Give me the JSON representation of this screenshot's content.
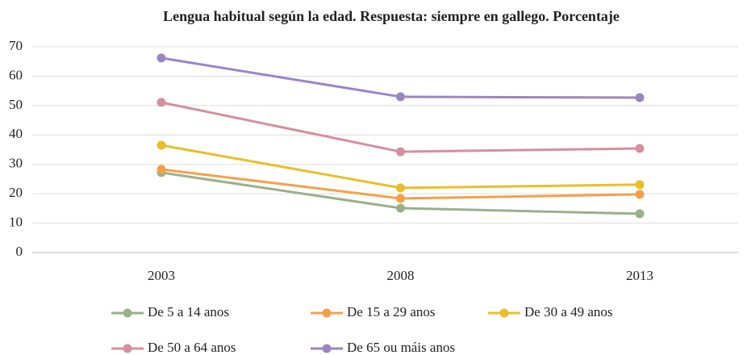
{
  "chart_data": {
    "type": "line",
    "title": "Lengua habitual según la edad. Respuesta: siempre en gallego. Porcentaje",
    "categories": [
      "2003",
      "2008",
      "2013"
    ],
    "series": [
      {
        "name": "De 5 a 14 anos",
        "color": "#9bb08a",
        "values": [
          27.2,
          15.1,
          13.2
        ]
      },
      {
        "name": "De 15 a 29 anos",
        "color": "#f4a04a",
        "values": [
          28.3,
          18.4,
          19.8
        ]
      },
      {
        "name": "De 30 a 49 anos",
        "color": "#e8bf2a",
        "values": [
          36.5,
          22.0,
          23.1
        ]
      },
      {
        "name": "De 50 a 64 anos",
        "color": "#d4909e",
        "values": [
          51.1,
          34.3,
          35.4
        ]
      },
      {
        "name": "De 65 ou máis anos",
        "color": "#9b86c4",
        "values": [
          66.2,
          53.0,
          52.7
        ]
      }
    ],
    "ylim": [
      0,
      70
    ],
    "yticks": [
      0,
      10,
      20,
      30,
      40,
      50,
      60,
      70
    ],
    "grid": true,
    "legend": "bottom"
  }
}
